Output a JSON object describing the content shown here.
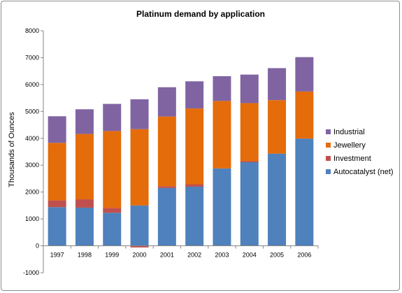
{
  "chart_data": {
    "type": "bar",
    "stacked": true,
    "title": "Platinum demand by application",
    "xlabel": "",
    "ylabel": "Thousands of Ounces",
    "ylim": [
      -1000,
      8000
    ],
    "yticks": [
      -1000,
      0,
      1000,
      2000,
      3000,
      4000,
      5000,
      6000,
      7000,
      8000
    ],
    "grid": false,
    "legend_position": "right",
    "categories": [
      "1997",
      "1998",
      "1999",
      "2000",
      "2001",
      "2002",
      "2003",
      "2004",
      "2005",
      "2006"
    ],
    "series": [
      {
        "name": "Autocatalyst (net)",
        "color": "#4f81bd",
        "values": [
          1440,
          1420,
          1230,
          1500,
          2150,
          2200,
          2880,
          3110,
          3430,
          3990
        ]
      },
      {
        "name": "Investment",
        "color": "#c0504d",
        "values": [
          250,
          310,
          180,
          -60,
          70,
          90,
          0,
          40,
          0,
          0
        ]
      },
      {
        "name": "Jewellery",
        "color": "#e46c0a",
        "values": [
          2140,
          2430,
          2860,
          2840,
          2590,
          2820,
          2510,
          2160,
          1990,
          1750
        ]
      },
      {
        "name": "Industrial",
        "color": "#8064a2",
        "values": [
          990,
          920,
          1010,
          1110,
          1090,
          1010,
          920,
          1060,
          1190,
          1280
        ]
      }
    ]
  }
}
